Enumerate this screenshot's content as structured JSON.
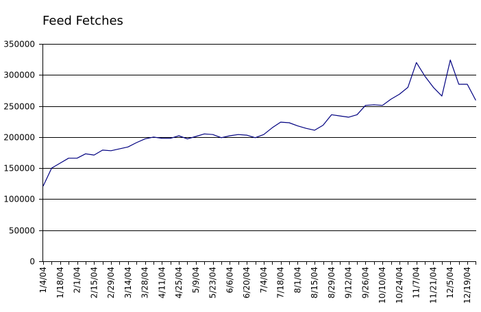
{
  "chart_data": {
    "type": "line",
    "title": "Feed Fetches",
    "xlabel": "",
    "ylabel": "",
    "ylim": [
      0,
      350000
    ],
    "yticks": [
      0,
      50000,
      100000,
      150000,
      200000,
      250000,
      300000,
      350000
    ],
    "ytick_labels": [
      "0",
      "50000",
      "100000",
      "150000",
      "200000",
      "250000",
      "300000",
      "350000"
    ],
    "x_tick_labels": [
      "1/4/04",
      "1/18/04",
      "2/1/04",
      "2/15/04",
      "2/29/04",
      "3/14/04",
      "3/28/04",
      "4/11/04",
      "4/25/04",
      "5/9/04",
      "5/23/04",
      "6/6/04",
      "6/20/04",
      "7/4/04",
      "7/18/04",
      "8/1/04",
      "8/15/04",
      "8/29/04",
      "9/12/04",
      "9/26/04",
      "10/10/04",
      "10/24/04",
      "11/7/04",
      "11/21/04",
      "12/5/04",
      "12/19/04"
    ],
    "grid": "horizontal",
    "legend": "none",
    "line_color": "#000080",
    "series": [
      {
        "x": [
          "1/4/04",
          "1/11/04",
          "1/18/04",
          "1/25/04",
          "2/1/04",
          "2/8/04",
          "2/15/04",
          "2/22/04",
          "2/29/04",
          "3/7/04",
          "3/14/04",
          "3/21/04",
          "3/28/04",
          "4/4/04",
          "4/11/04",
          "4/18/04",
          "4/25/04",
          "5/2/04",
          "5/9/04",
          "5/16/04",
          "5/23/04",
          "5/30/04",
          "6/6/04",
          "6/13/04",
          "6/20/04",
          "6/27/04",
          "7/4/04",
          "7/11/04",
          "7/18/04",
          "7/25/04",
          "8/1/04",
          "8/8/04",
          "8/15/04",
          "8/22/04",
          "8/29/04",
          "9/5/04",
          "9/12/04",
          "9/19/04",
          "9/26/04",
          "10/3/04",
          "10/10/04",
          "10/17/04",
          "10/24/04",
          "10/31/04",
          "11/7/04",
          "11/14/04",
          "11/21/04",
          "11/28/04",
          "12/5/04",
          "12/12/04",
          "12/19/04",
          "12/26/04"
        ],
        "values": [
          121000,
          150000,
          158000,
          166000,
          166000,
          173000,
          171000,
          179000,
          178000,
          181000,
          184000,
          191000,
          197000,
          200000,
          198000,
          198000,
          202000,
          197000,
          201000,
          205000,
          204000,
          199000,
          202000,
          204000,
          203000,
          199000,
          204000,
          215000,
          224000,
          223000,
          218000,
          214000,
          211000,
          219000,
          236000,
          234000,
          232000,
          236000,
          251000,
          252000,
          251000,
          261000,
          269000,
          280000,
          320000,
          298000,
          280000,
          266000,
          324000,
          285000,
          285000,
          259000
        ]
      }
    ]
  }
}
